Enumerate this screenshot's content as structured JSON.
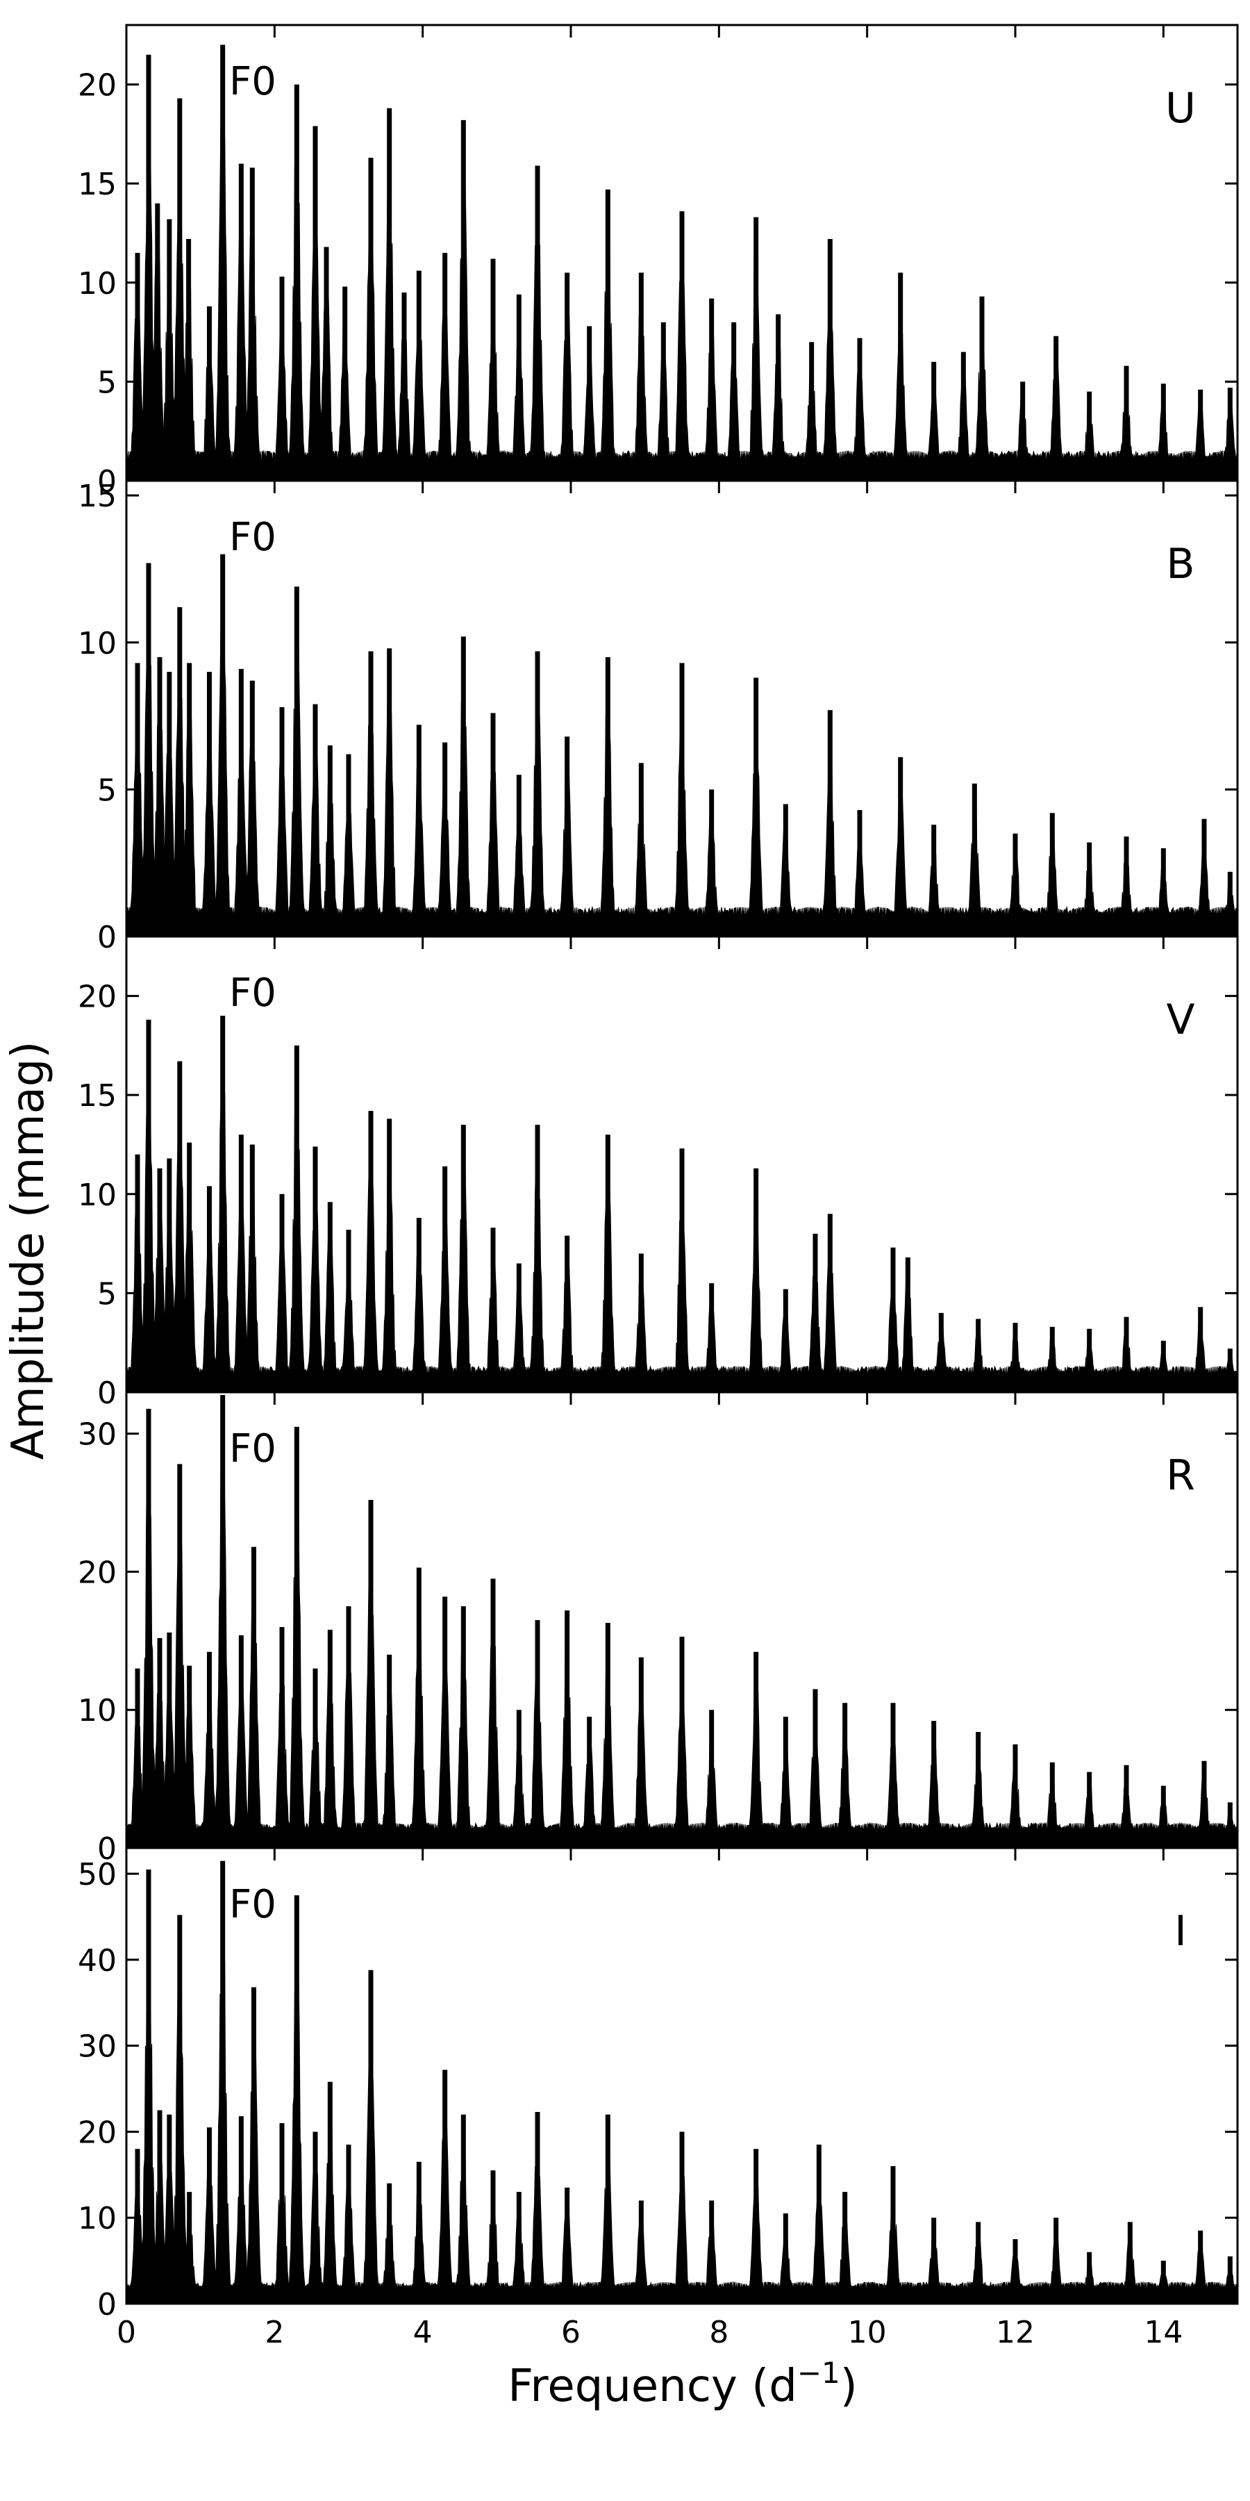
{
  "chart_data": {
    "type": "area",
    "title": "",
    "xlabel_main": "Frequency (d",
    "xlabel_sup": "−1",
    "xlabel_tail": ")",
    "ylabel": "Amplitude (mmag)",
    "xlim": [
      0,
      15
    ],
    "xticks": [
      "0",
      "2",
      "4",
      "6",
      "8",
      "10",
      "12",
      "14"
    ],
    "grid": false,
    "legend": "none",
    "series_color": "#000000",
    "panels": [
      {
        "name": "U",
        "annotation": "F0",
        "ylim": [
          0,
          23
        ],
        "yticks": [
          "0",
          "5",
          "10",
          "15",
          "20"
        ],
        "noise_floor": 1.5,
        "peaks": [
          {
            "f": 0.15,
            "a": 11.5
          },
          {
            "f": 0.3,
            "a": 21.5
          },
          {
            "f": 0.42,
            "a": 14.0
          },
          {
            "f": 0.58,
            "a": 13.2
          },
          {
            "f": 0.72,
            "a": 19.3
          },
          {
            "f": 0.84,
            "a": 12.2
          },
          {
            "f": 1.12,
            "a": 8.8
          },
          {
            "f": 1.3,
            "a": 22.0
          },
          {
            "f": 1.55,
            "a": 16.0
          },
          {
            "f": 1.7,
            "a": 15.8
          },
          {
            "f": 2.1,
            "a": 10.3
          },
          {
            "f": 2.3,
            "a": 20.0
          },
          {
            "f": 2.55,
            "a": 17.9
          },
          {
            "f": 2.7,
            "a": 11.8
          },
          {
            "f": 2.95,
            "a": 9.8
          },
          {
            "f": 3.3,
            "a": 16.3
          },
          {
            "f": 3.55,
            "a": 18.8
          },
          {
            "f": 3.75,
            "a": 9.5
          },
          {
            "f": 3.95,
            "a": 10.6
          },
          {
            "f": 4.3,
            "a": 11.5
          },
          {
            "f": 4.55,
            "a": 18.2
          },
          {
            "f": 4.95,
            "a": 11.2
          },
          {
            "f": 5.3,
            "a": 9.4
          },
          {
            "f": 5.55,
            "a": 15.9
          },
          {
            "f": 5.95,
            "a": 10.5
          },
          {
            "f": 6.25,
            "a": 7.8
          },
          {
            "f": 6.5,
            "a": 14.7
          },
          {
            "f": 6.95,
            "a": 10.5
          },
          {
            "f": 7.25,
            "a": 8.0
          },
          {
            "f": 7.5,
            "a": 13.6
          },
          {
            "f": 7.9,
            "a": 9.2
          },
          {
            "f": 8.2,
            "a": 8.0
          },
          {
            "f": 8.5,
            "a": 13.3
          },
          {
            "f": 8.8,
            "a": 8.4
          },
          {
            "f": 9.25,
            "a": 7.0
          },
          {
            "f": 9.5,
            "a": 12.2
          },
          {
            "f": 9.9,
            "a": 7.2
          },
          {
            "f": 10.45,
            "a": 10.5
          },
          {
            "f": 10.9,
            "a": 6.0
          },
          {
            "f": 11.3,
            "a": 6.5
          },
          {
            "f": 11.55,
            "a": 9.3
          },
          {
            "f": 12.1,
            "a": 5.0
          },
          {
            "f": 12.55,
            "a": 7.3
          },
          {
            "f": 13.0,
            "a": 4.5
          },
          {
            "f": 13.5,
            "a": 5.8
          },
          {
            "f": 14.0,
            "a": 4.9
          },
          {
            "f": 14.5,
            "a": 4.6
          },
          {
            "f": 14.9,
            "a": 4.7
          }
        ]
      },
      {
        "name": "B",
        "annotation": "F0",
        "ylim": [
          0,
          15.5
        ],
        "yticks": [
          "0",
          "5",
          "10",
          "15"
        ],
        "noise_floor": 1.0,
        "peaks": [
          {
            "f": 0.15,
            "a": 9.3
          },
          {
            "f": 0.3,
            "a": 12.7
          },
          {
            "f": 0.45,
            "a": 9.5
          },
          {
            "f": 0.58,
            "a": 9.0
          },
          {
            "f": 0.72,
            "a": 11.2
          },
          {
            "f": 0.85,
            "a": 9.3
          },
          {
            "f": 1.12,
            "a": 9.0
          },
          {
            "f": 1.3,
            "a": 13.0
          },
          {
            "f": 1.55,
            "a": 9.1
          },
          {
            "f": 1.7,
            "a": 8.7
          },
          {
            "f": 2.1,
            "a": 7.8
          },
          {
            "f": 2.3,
            "a": 11.9
          },
          {
            "f": 2.55,
            "a": 7.9
          },
          {
            "f": 2.75,
            "a": 6.5
          },
          {
            "f": 3.0,
            "a": 6.2
          },
          {
            "f": 3.3,
            "a": 9.7
          },
          {
            "f": 3.55,
            "a": 9.8
          },
          {
            "f": 3.95,
            "a": 7.2
          },
          {
            "f": 4.3,
            "a": 6.6
          },
          {
            "f": 4.55,
            "a": 10.2
          },
          {
            "f": 4.95,
            "a": 7.6
          },
          {
            "f": 5.3,
            "a": 5.5
          },
          {
            "f": 5.55,
            "a": 9.7
          },
          {
            "f": 5.95,
            "a": 6.8
          },
          {
            "f": 6.5,
            "a": 9.5
          },
          {
            "f": 6.95,
            "a": 5.9
          },
          {
            "f": 7.5,
            "a": 9.3
          },
          {
            "f": 7.9,
            "a": 5.0
          },
          {
            "f": 8.5,
            "a": 8.8
          },
          {
            "f": 8.9,
            "a": 4.5
          },
          {
            "f": 9.5,
            "a": 7.7
          },
          {
            "f": 9.9,
            "a": 4.3
          },
          {
            "f": 10.45,
            "a": 6.1
          },
          {
            "f": 10.9,
            "a": 3.8
          },
          {
            "f": 11.45,
            "a": 5.2
          },
          {
            "f": 12.0,
            "a": 3.5
          },
          {
            "f": 12.5,
            "a": 4.2
          },
          {
            "f": 13.0,
            "a": 3.2
          },
          {
            "f": 13.5,
            "a": 3.4
          },
          {
            "f": 14.0,
            "a": 3.0
          },
          {
            "f": 14.55,
            "a": 4.0
          },
          {
            "f": 14.9,
            "a": 2.2
          }
        ]
      },
      {
        "name": "V",
        "annotation": "F0",
        "ylim": [
          0,
          23
        ],
        "yticks": [
          "0",
          "5",
          "10",
          "15",
          "20"
        ],
        "noise_floor": 1.3,
        "peaks": [
          {
            "f": 0.15,
            "a": 12.0
          },
          {
            "f": 0.3,
            "a": 18.8
          },
          {
            "f": 0.45,
            "a": 11.3
          },
          {
            "f": 0.58,
            "a": 11.8
          },
          {
            "f": 0.72,
            "a": 16.7
          },
          {
            "f": 0.85,
            "a": 12.6
          },
          {
            "f": 1.12,
            "a": 10.4
          },
          {
            "f": 1.3,
            "a": 19.0
          },
          {
            "f": 1.55,
            "a": 13.0
          },
          {
            "f": 1.7,
            "a": 12.5
          },
          {
            "f": 2.1,
            "a": 10.0
          },
          {
            "f": 2.3,
            "a": 17.5
          },
          {
            "f": 2.55,
            "a": 12.4
          },
          {
            "f": 2.75,
            "a": 9.6
          },
          {
            "f": 3.0,
            "a": 8.2
          },
          {
            "f": 3.3,
            "a": 14.2
          },
          {
            "f": 3.55,
            "a": 13.8
          },
          {
            "f": 3.95,
            "a": 8.8
          },
          {
            "f": 4.3,
            "a": 11.4
          },
          {
            "f": 4.55,
            "a": 13.5
          },
          {
            "f": 4.95,
            "a": 8.3
          },
          {
            "f": 5.3,
            "a": 6.5
          },
          {
            "f": 5.55,
            "a": 13.5
          },
          {
            "f": 5.95,
            "a": 7.9
          },
          {
            "f": 6.5,
            "a": 13.0
          },
          {
            "f": 6.95,
            "a": 7.0
          },
          {
            "f": 7.5,
            "a": 12.3
          },
          {
            "f": 7.9,
            "a": 5.5
          },
          {
            "f": 8.5,
            "a": 11.3
          },
          {
            "f": 8.9,
            "a": 5.2
          },
          {
            "f": 9.3,
            "a": 8.0
          },
          {
            "f": 9.5,
            "a": 9.0
          },
          {
            "f": 10.35,
            "a": 7.3
          },
          {
            "f": 10.55,
            "a": 6.8
          },
          {
            "f": 11.0,
            "a": 4.0
          },
          {
            "f": 11.5,
            "a": 3.7
          },
          {
            "f": 12.0,
            "a": 3.5
          },
          {
            "f": 12.5,
            "a": 3.3
          },
          {
            "f": 13.0,
            "a": 3.2
          },
          {
            "f": 13.5,
            "a": 3.8
          },
          {
            "f": 14.0,
            "a": 2.6
          },
          {
            "f": 14.5,
            "a": 4.3
          },
          {
            "f": 14.9,
            "a": 2.2
          }
        ]
      },
      {
        "name": "R",
        "annotation": "F0",
        "ylim": [
          0,
          33
        ],
        "yticks": [
          "0",
          "10",
          "20",
          "30"
        ],
        "noise_floor": 1.8,
        "peaks": [
          {
            "f": 0.15,
            "a": 13.0
          },
          {
            "f": 0.3,
            "a": 31.8
          },
          {
            "f": 0.45,
            "a": 15.2
          },
          {
            "f": 0.58,
            "a": 15.6
          },
          {
            "f": 0.72,
            "a": 27.8
          },
          {
            "f": 0.85,
            "a": 13.2
          },
          {
            "f": 1.12,
            "a": 14.2
          },
          {
            "f": 1.3,
            "a": 32.8
          },
          {
            "f": 1.55,
            "a": 15.4
          },
          {
            "f": 1.72,
            "a": 21.8
          },
          {
            "f": 2.1,
            "a": 16.0
          },
          {
            "f": 2.3,
            "a": 30.5
          },
          {
            "f": 2.55,
            "a": 13.0
          },
          {
            "f": 2.75,
            "a": 15.8
          },
          {
            "f": 3.0,
            "a": 17.5
          },
          {
            "f": 3.3,
            "a": 25.2
          },
          {
            "f": 3.55,
            "a": 14.0
          },
          {
            "f": 3.95,
            "a": 20.3
          },
          {
            "f": 4.3,
            "a": 18.2
          },
          {
            "f": 4.55,
            "a": 17.5
          },
          {
            "f": 4.95,
            "a": 19.5
          },
          {
            "f": 5.3,
            "a": 10.0
          },
          {
            "f": 5.55,
            "a": 16.5
          },
          {
            "f": 5.95,
            "a": 17.2
          },
          {
            "f": 6.25,
            "a": 9.5
          },
          {
            "f": 6.5,
            "a": 16.3
          },
          {
            "f": 6.95,
            "a": 13.8
          },
          {
            "f": 7.5,
            "a": 15.3
          },
          {
            "f": 7.9,
            "a": 10.0
          },
          {
            "f": 8.5,
            "a": 14.2
          },
          {
            "f": 8.9,
            "a": 9.5
          },
          {
            "f": 9.3,
            "a": 11.5
          },
          {
            "f": 9.7,
            "a": 10.5
          },
          {
            "f": 10.35,
            "a": 10.5
          },
          {
            "f": 10.9,
            "a": 9.2
          },
          {
            "f": 11.5,
            "a": 8.4
          },
          {
            "f": 12.0,
            "a": 7.5
          },
          {
            "f": 12.5,
            "a": 6.2
          },
          {
            "f": 13.0,
            "a": 5.5
          },
          {
            "f": 13.5,
            "a": 6.0
          },
          {
            "f": 14.0,
            "a": 4.5
          },
          {
            "f": 14.55,
            "a": 6.3
          },
          {
            "f": 14.9,
            "a": 3.3
          }
        ]
      },
      {
        "name": "I",
        "annotation": "F0",
        "ylim": [
          0,
          53
        ],
        "yticks": [
          "0",
          "10",
          "20",
          "30",
          "40",
          "50"
        ],
        "noise_floor": 2.5,
        "peaks": [
          {
            "f": 0.15,
            "a": 18.0
          },
          {
            "f": 0.3,
            "a": 50.5
          },
          {
            "f": 0.45,
            "a": 22.5
          },
          {
            "f": 0.58,
            "a": 22.0
          },
          {
            "f": 0.72,
            "a": 45.2
          },
          {
            "f": 0.85,
            "a": 13.0
          },
          {
            "f": 1.12,
            "a": 20.5
          },
          {
            "f": 1.3,
            "a": 51.5
          },
          {
            "f": 1.55,
            "a": 21.8
          },
          {
            "f": 1.72,
            "a": 36.8
          },
          {
            "f": 2.1,
            "a": 21.0
          },
          {
            "f": 2.3,
            "a": 47.5
          },
          {
            "f": 2.55,
            "a": 20.0
          },
          {
            "f": 2.75,
            "a": 25.8
          },
          {
            "f": 3.0,
            "a": 18.5
          },
          {
            "f": 3.3,
            "a": 38.8
          },
          {
            "f": 3.55,
            "a": 14.0
          },
          {
            "f": 3.95,
            "a": 16.5
          },
          {
            "f": 4.3,
            "a": 27.2
          },
          {
            "f": 4.55,
            "a": 22.0
          },
          {
            "f": 4.95,
            "a": 15.5
          },
          {
            "f": 5.3,
            "a": 13.0
          },
          {
            "f": 5.55,
            "a": 22.3
          },
          {
            "f": 5.95,
            "a": 13.5
          },
          {
            "f": 6.5,
            "a": 22.0
          },
          {
            "f": 6.95,
            "a": 12.0
          },
          {
            "f": 7.5,
            "a": 20.0
          },
          {
            "f": 7.9,
            "a": 12.0
          },
          {
            "f": 8.5,
            "a": 18.0
          },
          {
            "f": 8.9,
            "a": 10.5
          },
          {
            "f": 9.35,
            "a": 18.5
          },
          {
            "f": 9.7,
            "a": 13.0
          },
          {
            "f": 10.35,
            "a": 16.0
          },
          {
            "f": 10.9,
            "a": 10.0
          },
          {
            "f": 11.5,
            "a": 9.5
          },
          {
            "f": 12.0,
            "a": 7.5
          },
          {
            "f": 12.55,
            "a": 10.0
          },
          {
            "f": 13.0,
            "a": 6.0
          },
          {
            "f": 13.55,
            "a": 9.5
          },
          {
            "f": 14.0,
            "a": 5.0
          },
          {
            "f": 14.5,
            "a": 8.5
          },
          {
            "f": 14.9,
            "a": 5.5
          }
        ]
      }
    ]
  }
}
